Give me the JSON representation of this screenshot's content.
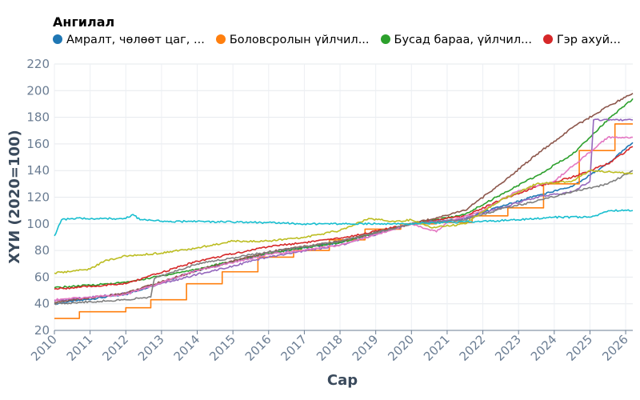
{
  "chart_data": {
    "type": "line",
    "legend_title": "Ангилал",
    "legend_placement": "top",
    "xlabel": "Сар",
    "ylabel": "ХҮИ (2020=100)",
    "xlim": [
      2010,
      2026.2
    ],
    "ylim": [
      20,
      220
    ],
    "x_ticks": [
      "2010",
      "2011",
      "2012",
      "2013",
      "2014",
      "2015",
      "2016",
      "2017",
      "2018",
      "2019",
      "2020",
      "2021",
      "2022",
      "2023",
      "2024",
      "2025",
      "2026"
    ],
    "y_ticks": [
      20,
      40,
      60,
      80,
      100,
      120,
      140,
      160,
      180,
      200,
      220
    ],
    "grid": true,
    "series": [
      {
        "name": "Амралт, чөлөөт цаг, ...",
        "legend": true,
        "color": "#1f77b4",
        "interp": "linear",
        "points": [
          [
            2010,
            40
          ],
          [
            2012,
            47
          ],
          [
            2014,
            65
          ],
          [
            2016,
            78
          ],
          [
            2018,
            86
          ],
          [
            2020,
            100
          ],
          [
            2021.5,
            104
          ],
          [
            2022.5,
            113
          ],
          [
            2023.5,
            121
          ],
          [
            2024.5,
            128
          ],
          [
            2025.5,
            145
          ],
          [
            2026.2,
            161
          ]
        ]
      },
      {
        "name": "Боловсролын үйлчил...",
        "legend": true,
        "color": "#ff7f0e",
        "interp": "step",
        "points": [
          [
            2010,
            29
          ],
          [
            2010.7,
            34
          ],
          [
            2012,
            37
          ],
          [
            2012.7,
            43
          ],
          [
            2013.7,
            55
          ],
          [
            2014.7,
            64
          ],
          [
            2015.7,
            75
          ],
          [
            2016.7,
            80
          ],
          [
            2017.7,
            88
          ],
          [
            2018.7,
            96
          ],
          [
            2019.7,
            100
          ],
          [
            2020.7,
            101
          ],
          [
            2021.7,
            106
          ],
          [
            2022.7,
            112
          ],
          [
            2023.7,
            130
          ],
          [
            2024.7,
            155
          ],
          [
            2025.7,
            175
          ],
          [
            2026.2,
            175
          ]
        ]
      },
      {
        "name": "Бусад бараа, үйлчил...",
        "legend": true,
        "color": "#2ca02c",
        "interp": "linear",
        "points": [
          [
            2010,
            52
          ],
          [
            2012,
            56
          ],
          [
            2014,
            66
          ],
          [
            2016,
            78
          ],
          [
            2018,
            86
          ],
          [
            2020,
            100
          ],
          [
            2021.5,
            107
          ],
          [
            2022.5,
            122
          ],
          [
            2023.5,
            136
          ],
          [
            2024.5,
            152
          ],
          [
            2025.5,
            178
          ],
          [
            2026.2,
            194
          ]
        ]
      },
      {
        "name": "Гэр ахуй...",
        "legend": true,
        "color": "#d62728",
        "interp": "linear",
        "points": [
          [
            2010,
            51
          ],
          [
            2012,
            55
          ],
          [
            2014,
            72
          ],
          [
            2016,
            83
          ],
          [
            2018,
            89
          ],
          [
            2020,
            100
          ],
          [
            2021.5,
            106
          ],
          [
            2022.5,
            118
          ],
          [
            2023.5,
            128
          ],
          [
            2024.5,
            135
          ],
          [
            2025.5,
            145
          ],
          [
            2026.2,
            158
          ]
        ]
      },
      {
        "name": "",
        "legend": false,
        "color": "#9467bd",
        "interp": "linear",
        "points": [
          [
            2010,
            42
          ],
          [
            2012,
            48
          ],
          [
            2014,
            62
          ],
          [
            2016,
            75
          ],
          [
            2018,
            84
          ],
          [
            2020,
            100
          ],
          [
            2021.5,
            104
          ],
          [
            2022.5,
            112
          ],
          [
            2023.5,
            120
          ],
          [
            2024.5,
            124
          ],
          [
            2025,
            132
          ],
          [
            2025.1,
            178
          ],
          [
            2026.2,
            178
          ]
        ]
      },
      {
        "name": "",
        "legend": false,
        "color": "#8c564b",
        "interp": "linear",
        "points": [
          [
            2010,
            41
          ],
          [
            2012,
            48
          ],
          [
            2014,
            65
          ],
          [
            2016,
            79
          ],
          [
            2018,
            87
          ],
          [
            2020,
            100
          ],
          [
            2021.5,
            110
          ],
          [
            2022.5,
            130
          ],
          [
            2023.5,
            152
          ],
          [
            2024.5,
            172
          ],
          [
            2025.5,
            188
          ],
          [
            2026.2,
            198
          ]
        ]
      },
      {
        "name": "",
        "legend": false,
        "color": "#e377c2",
        "interp": "linear",
        "points": [
          [
            2010,
            43
          ],
          [
            2012,
            47
          ],
          [
            2014,
            65
          ],
          [
            2016,
            77
          ],
          [
            2018,
            84
          ],
          [
            2020,
            100
          ],
          [
            2020.7,
            94
          ],
          [
            2021,
            101
          ],
          [
            2022,
            110
          ],
          [
            2023,
            125
          ],
          [
            2024,
            132
          ],
          [
            2025.5,
            165
          ],
          [
            2026.2,
            165
          ]
        ]
      },
      {
        "name": "",
        "legend": false,
        "color": "#7f7f7f",
        "interp": "linear",
        "points": [
          [
            2010,
            40
          ],
          [
            2012,
            43
          ],
          [
            2012.7,
            45
          ],
          [
            2012.8,
            59
          ],
          [
            2014,
            70
          ],
          [
            2016,
            79
          ],
          [
            2018,
            87
          ],
          [
            2020,
            100
          ],
          [
            2021.5,
            103
          ],
          [
            2022.5,
            111
          ],
          [
            2023.5,
            117
          ],
          [
            2024.5,
            124
          ],
          [
            2025.5,
            130
          ],
          [
            2026.2,
            140
          ]
        ]
      },
      {
        "name": "",
        "legend": false,
        "color": "#bcbd22",
        "interp": "linear",
        "points": [
          [
            2010,
            63
          ],
          [
            2011,
            66
          ],
          [
            2011.4,
            72
          ],
          [
            2012,
            76
          ],
          [
            2013,
            78
          ],
          [
            2014,
            82
          ],
          [
            2015,
            87
          ],
          [
            2016,
            87
          ],
          [
            2017,
            90
          ],
          [
            2018,
            95
          ],
          [
            2018.8,
            104
          ],
          [
            2019.5,
            102
          ],
          [
            2020,
            103
          ],
          [
            2020.6,
            97
          ],
          [
            2021.5,
            100
          ],
          [
            2022.5,
            118
          ],
          [
            2023.5,
            130
          ],
          [
            2024.5,
            132
          ],
          [
            2025,
            140
          ],
          [
            2026.2,
            138
          ]
        ]
      },
      {
        "name": "",
        "legend": false,
        "color": "#17becf",
        "interp": "linear",
        "points": [
          [
            2010,
            91
          ],
          [
            2010.2,
            103
          ],
          [
            2010.5,
            104
          ],
          [
            2012,
            104
          ],
          [
            2012.2,
            107
          ],
          [
            2012.4,
            103
          ],
          [
            2013,
            102
          ],
          [
            2016,
            101
          ],
          [
            2017,
            100
          ],
          [
            2018,
            100
          ],
          [
            2019,
            100
          ],
          [
            2020,
            100
          ],
          [
            2021,
            101
          ],
          [
            2022,
            102
          ],
          [
            2023,
            103
          ],
          [
            2024,
            105
          ],
          [
            2025,
            105
          ],
          [
            2025.6,
            110
          ],
          [
            2026.2,
            110
          ]
        ]
      }
    ]
  }
}
